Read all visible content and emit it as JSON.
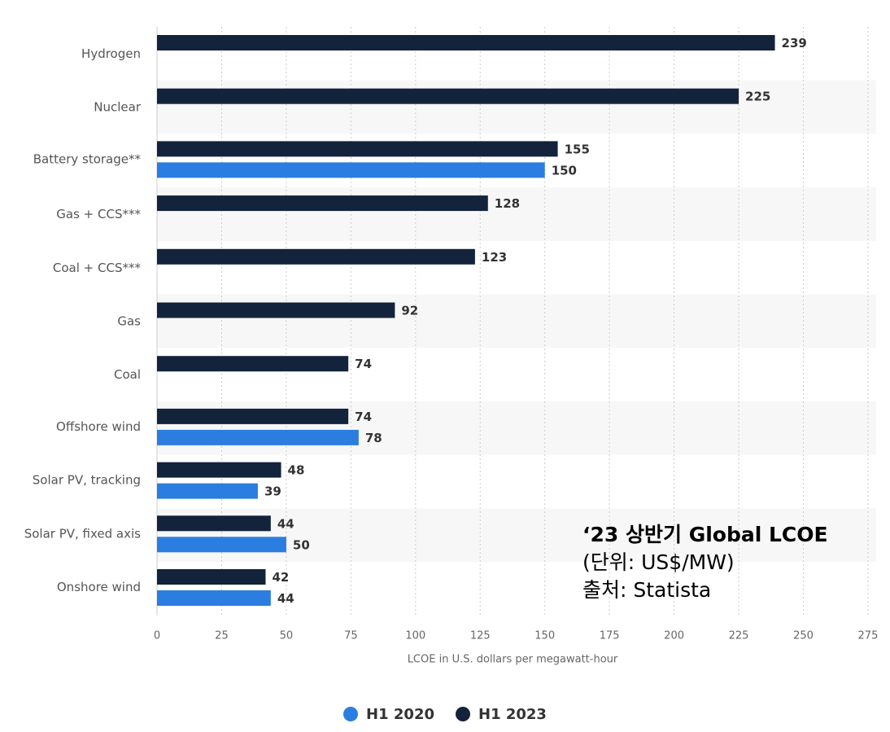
{
  "chart_data": {
    "type": "bar",
    "orientation": "horizontal",
    "categories": [
      "Hydrogen",
      "Nuclear",
      "Battery storage**",
      "Gas + CCS***",
      "Coal + CCS***",
      "Gas",
      "Coal",
      "Offshore wind",
      "Solar PV, tracking",
      "Solar PV, fixed axis",
      "Onshore wind"
    ],
    "series": [
      {
        "name": "H1 2023",
        "color": "#13233b",
        "values": [
          239,
          225,
          155,
          128,
          123,
          92,
          74,
          74,
          48,
          44,
          42
        ]
      },
      {
        "name": "H1 2020",
        "color": "#2b7de0",
        "values": [
          null,
          null,
          150,
          null,
          null,
          null,
          null,
          78,
          39,
          50,
          44
        ]
      }
    ],
    "xlabel": "LCOE in U.S. dollars per megawatt-hour",
    "xticks": [
      0,
      25,
      50,
      75,
      100,
      125,
      150,
      175,
      200,
      225,
      250,
      275
    ],
    "xlim": [
      0,
      275
    ],
    "grid": true
  },
  "annotation": {
    "title": "‘23 상반기 Global LCOE",
    "unit": "(단위: US$/MW)",
    "source": "출처: Statista"
  },
  "legend": [
    {
      "label": "H1 2020",
      "color": "#2b7de0"
    },
    {
      "label": "H1 2023",
      "color": "#13233b"
    }
  ]
}
